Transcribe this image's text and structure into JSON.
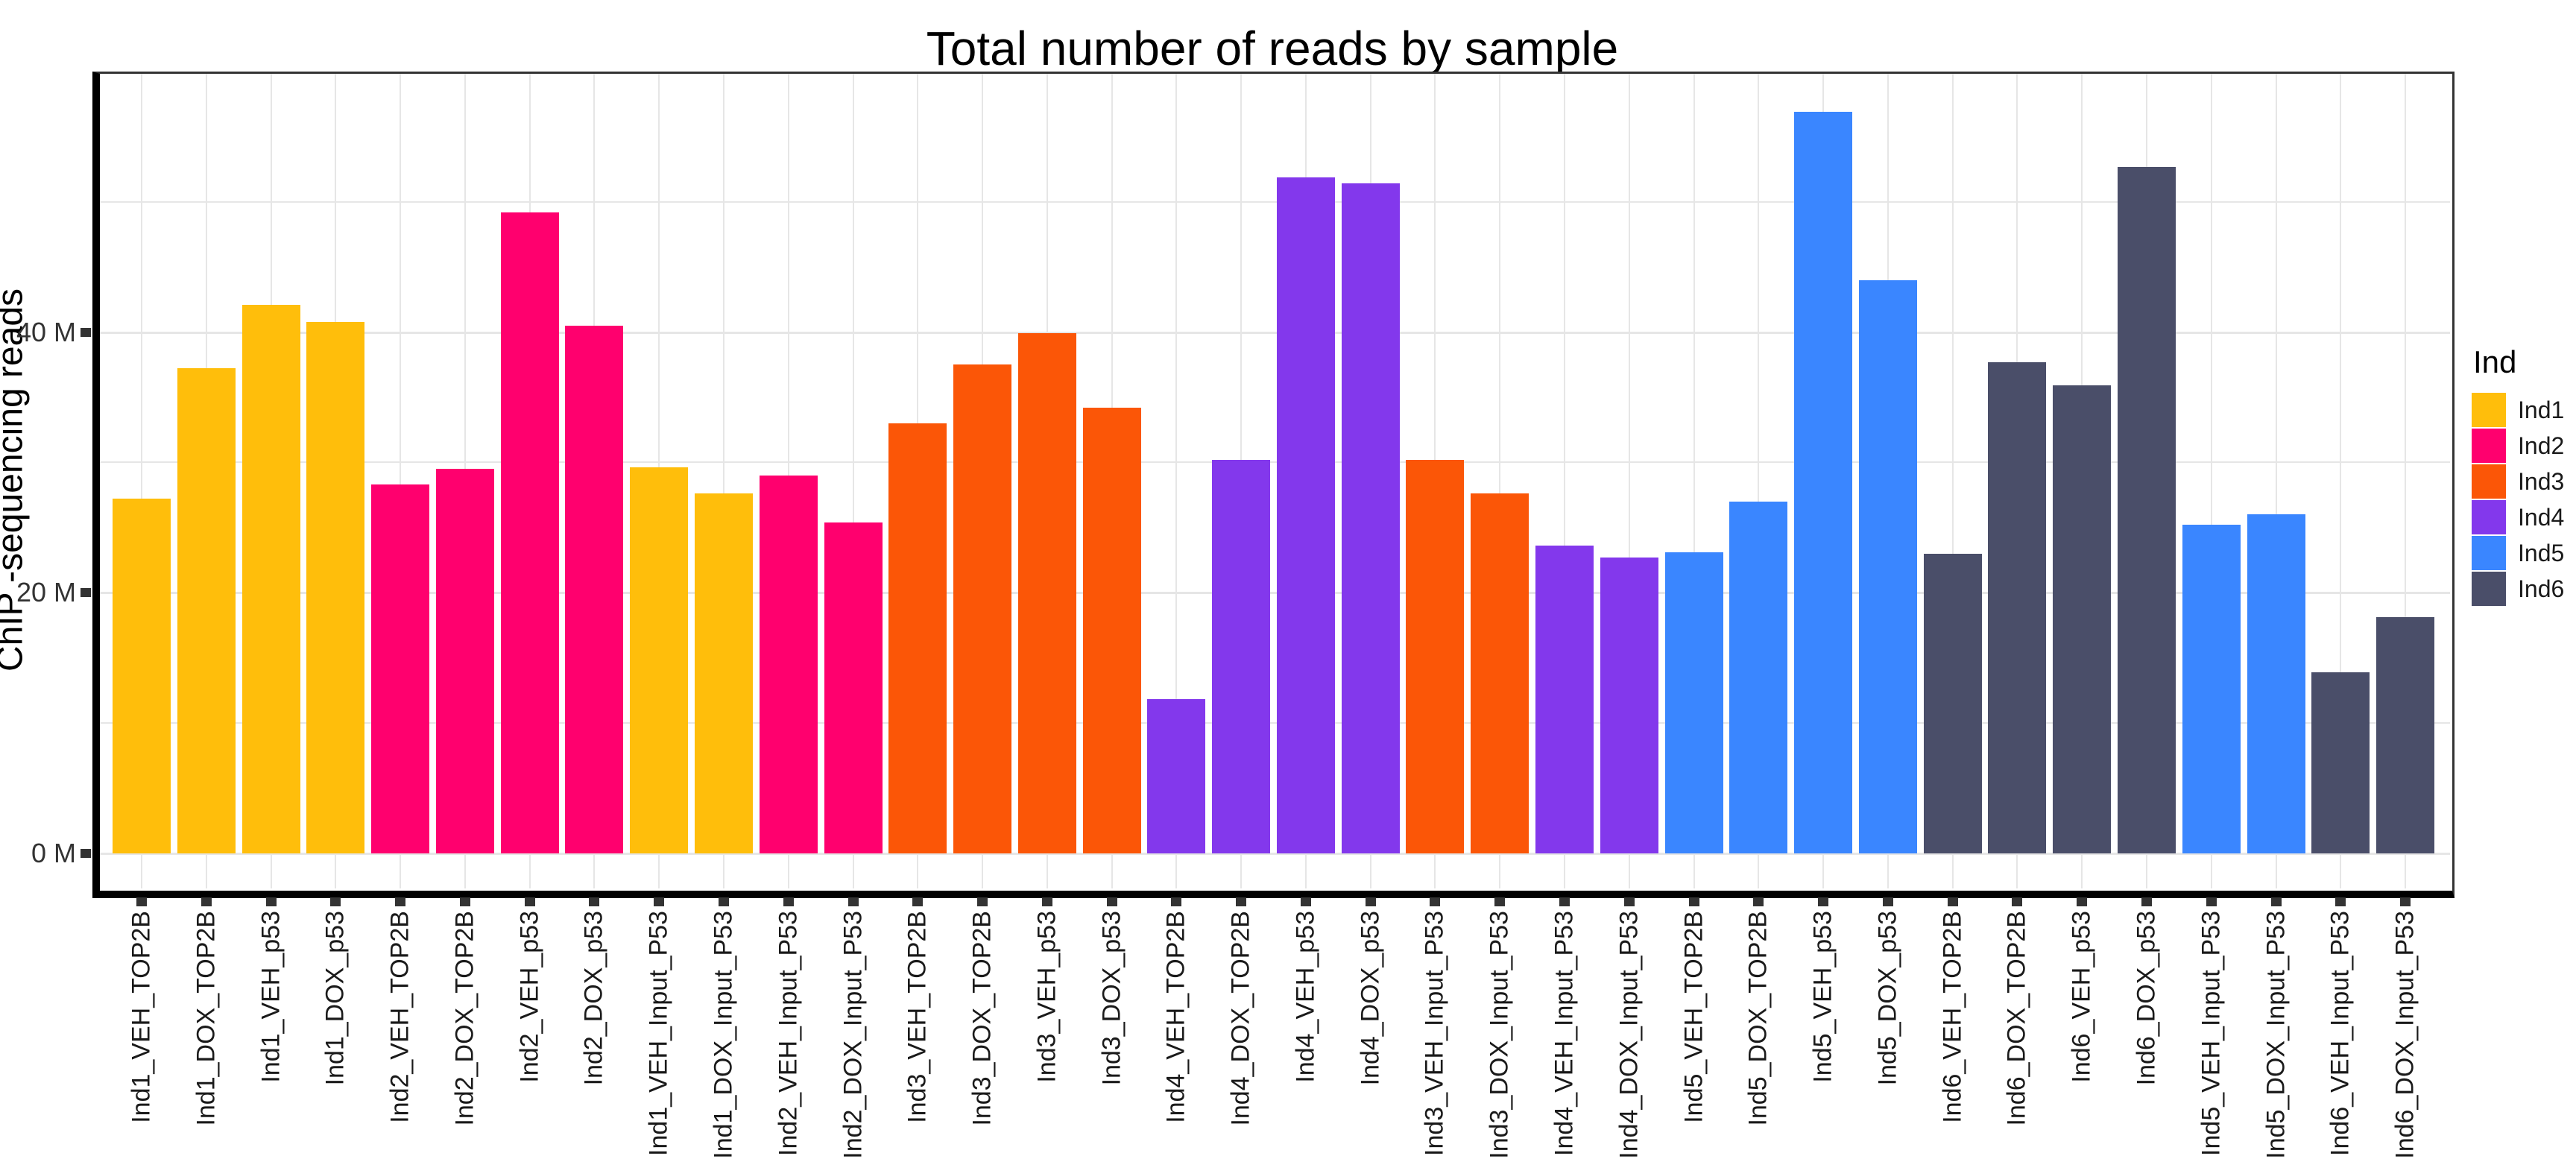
{
  "title": "Total number of reads by sample",
  "y_axis": {
    "label": "ChIP -sequencing reads",
    "ticks": [
      {
        "label": "0 M",
        "value": 0
      },
      {
        "label": "20 M",
        "value": 20
      },
      {
        "label": "40 M",
        "value": 40
      }
    ]
  },
  "legend": {
    "title": "Ind",
    "entries": [
      {
        "label": "Ind1",
        "color": "#FFBE0B"
      },
      {
        "label": "Ind2",
        "color": "#FF006E"
      },
      {
        "label": "Ind3",
        "color": "#FB5607"
      },
      {
        "label": "Ind4",
        "color": "#8338EC"
      },
      {
        "label": "Ind5",
        "color": "#3A86FF"
      },
      {
        "label": "Ind6",
        "color": "#4A4E69"
      }
    ]
  },
  "chart_data": {
    "type": "bar",
    "title": "Total number of reads by sample",
    "xlabel": "",
    "ylabel": "ChIP -sequencing reads",
    "unit": "millions of reads",
    "ylim": [
      -3,
      60
    ],
    "y_gridlines_m": [
      0,
      10,
      20,
      30,
      40,
      50
    ],
    "grid": true,
    "legend_position": "right",
    "categories": [
      "Ind1_VEH_TOP2B",
      "Ind1_DOX_TOP2B",
      "Ind1_VEH_p53",
      "Ind1_DOX_p53",
      "Ind2_VEH_TOP2B",
      "Ind2_DOX_TOP2B",
      "Ind2_VEH_p53",
      "Ind2_DOX_p53",
      "Ind1_VEH_Input_P53",
      "Ind1_DOX_Input_P53",
      "Ind2_VEH_Input_P53",
      "Ind2_DOX_Input_P53",
      "Ind3_VEH_TOP2B",
      "Ind3_DOX_TOP2B",
      "Ind3_VEH_p53",
      "Ind3_DOX_p53",
      "Ind4_VEH_TOP2B",
      "Ind4_DOX_TOP2B",
      "Ind4_VEH_p53",
      "Ind4_DOX_p53",
      "Ind3_VEH_Input_P53",
      "Ind3_DOX_Input_P53",
      "Ind4_VEH_Input_P53",
      "Ind4_DOX_Input_P53",
      "Ind5_VEH_TOP2B",
      "Ind5_DOX_TOP2B",
      "Ind5_VEH_p53",
      "Ind5_DOX_p53",
      "Ind6_VEH_TOP2B",
      "Ind6_DOX_TOP2B",
      "Ind6_VEH_p53",
      "Ind6_DOX_p53",
      "Ind5_VEH_Input_P53",
      "Ind5_DOX_Input_P53",
      "Ind6_VEH_Input_P53",
      "Ind6_DOX_Input_P53"
    ],
    "groups": [
      "Ind1",
      "Ind1",
      "Ind1",
      "Ind1",
      "Ind2",
      "Ind2",
      "Ind2",
      "Ind2",
      "Ind1",
      "Ind1",
      "Ind2",
      "Ind2",
      "Ind3",
      "Ind3",
      "Ind3",
      "Ind3",
      "Ind4",
      "Ind4",
      "Ind4",
      "Ind4",
      "Ind3",
      "Ind3",
      "Ind4",
      "Ind4",
      "Ind5",
      "Ind5",
      "Ind5",
      "Ind5",
      "Ind6",
      "Ind6",
      "Ind6",
      "Ind6",
      "Ind5",
      "Ind5",
      "Ind6",
      "Ind6"
    ],
    "values": [
      27.2,
      37.2,
      42.1,
      40.8,
      28.3,
      29.5,
      49.2,
      40.5,
      29.6,
      27.6,
      29.0,
      25.4,
      33.0,
      37.5,
      39.9,
      34.2,
      11.8,
      30.2,
      51.9,
      51.4,
      30.2,
      27.6,
      23.6,
      22.7,
      23.1,
      27.0,
      56.9,
      44.0,
      23.0,
      37.7,
      35.9,
      52.7,
      25.2,
      26.0,
      13.9,
      18.1
    ],
    "colors": {
      "Ind1": "#FFBE0B",
      "Ind2": "#FF006E",
      "Ind3": "#FB5607",
      "Ind4": "#8338EC",
      "Ind5": "#3A86FF",
      "Ind6": "#4A4E69"
    }
  }
}
